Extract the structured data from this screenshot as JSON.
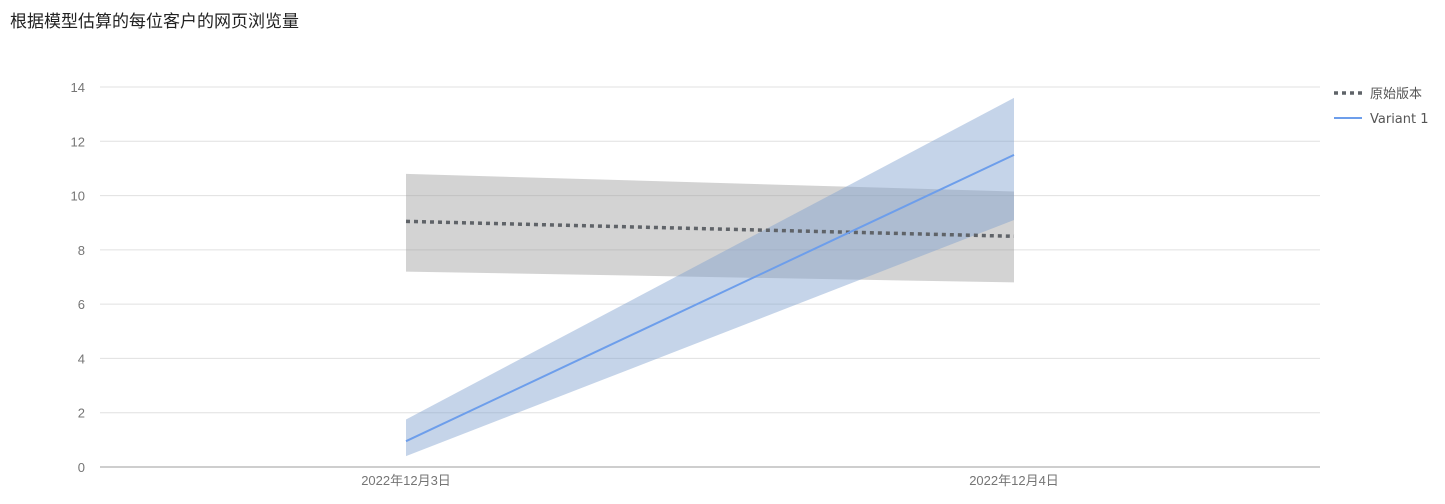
{
  "chart_data": {
    "type": "line",
    "title": "根据模型估算的每位客户的网页浏览量",
    "xlabel": "",
    "ylabel": "",
    "categories": [
      "2022年12月3日",
      "2022年12月4日"
    ],
    "ylim": [
      0,
      14
    ],
    "yticks": [
      0,
      2,
      4,
      6,
      8,
      10,
      12,
      14
    ],
    "grid": true,
    "legend_position": "right",
    "series": [
      {
        "name": "原始版本",
        "style": "dotted",
        "color": "#5f6368",
        "band_color": "#9e9e9e",
        "values": [
          9.05,
          8.5
        ],
        "lower": [
          7.2,
          6.8
        ],
        "upper": [
          10.8,
          10.15
        ]
      },
      {
        "name": "Variant 1",
        "style": "solid",
        "color": "#6d9eeb",
        "band_color": "#7e9fcf",
        "values": [
          0.95,
          11.5
        ],
        "lower": [
          0.4,
          9.1
        ],
        "upper": [
          1.75,
          13.6
        ]
      }
    ]
  }
}
